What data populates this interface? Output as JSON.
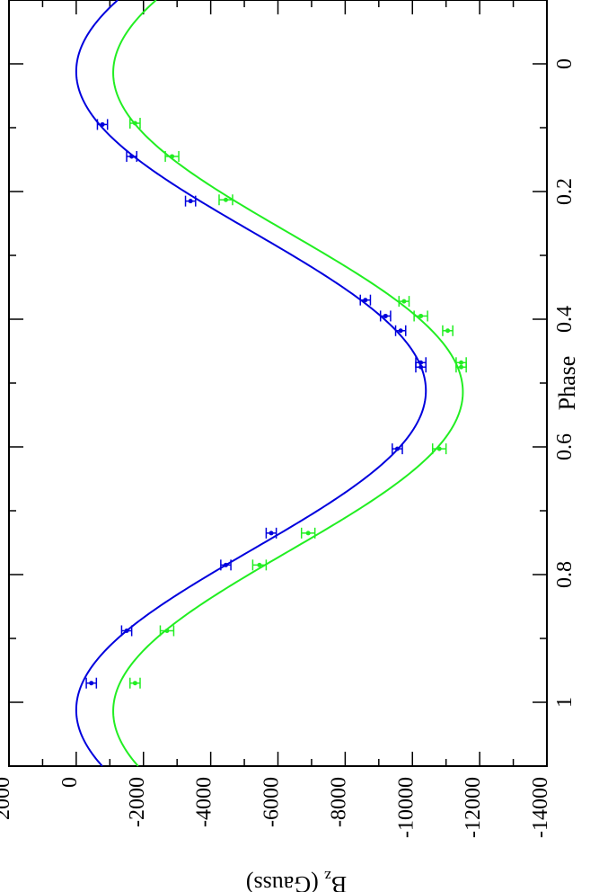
{
  "chart_data": {
    "type": "scatter",
    "orientation": "rotated-90-clockwise",
    "xlabel": "Phase",
    "ylabel_main": "B",
    "ylabel_sub": "z",
    "ylabel_rest": " (Gauss)",
    "xlim": [
      -0.1,
      1.1
    ],
    "ylim": [
      -14000,
      2000
    ],
    "x_ticks": [
      0,
      0.2,
      0.4,
      0.6,
      0.8,
      1
    ],
    "x_tick_labels": [
      "0",
      "0.2",
      "0.4",
      "0.6",
      "0.8",
      "1"
    ],
    "y_ticks": [
      2000,
      0,
      -2000,
      -4000,
      -6000,
      -8000,
      -10000,
      -12000,
      -14000
    ],
    "y_tick_labels": [
      "2000",
      "0",
      "-2000",
      "-4000",
      "-6000",
      "-8000",
      "-10000",
      "-12000",
      "-14000"
    ],
    "grid": false,
    "series": [
      {
        "color": "#0000dd",
        "fit": {
          "mean": -5200,
          "amplitude": 5200,
          "phase_of_max": 0.012
        },
        "points": [
          {
            "x": 0.095,
            "y": -780,
            "err": 150
          },
          {
            "x": 0.145,
            "y": -1650,
            "err": 150
          },
          {
            "x": 0.215,
            "y": -3400,
            "err": 150
          },
          {
            "x": 0.37,
            "y": -8600,
            "err": 150
          },
          {
            "x": 0.395,
            "y": -9200,
            "err": 150
          },
          {
            "x": 0.418,
            "y": -9650,
            "err": 150
          },
          {
            "x": 0.468,
            "y": -10250,
            "err": 150
          },
          {
            "x": 0.475,
            "y": -10250,
            "err": 150
          },
          {
            "x": 0.603,
            "y": -9550,
            "err": 150
          },
          {
            "x": 0.735,
            "y": -5800,
            "err": 150
          },
          {
            "x": 0.785,
            "y": -4450,
            "err": 150
          },
          {
            "x": 0.888,
            "y": -1500,
            "err": 150
          },
          {
            "x": 0.97,
            "y": -450,
            "err": 150
          }
        ]
      },
      {
        "color": "#22ee22",
        "fit": {
          "mean": -6300,
          "amplitude": 5200,
          "phase_of_max": 0.014
        },
        "points": [
          {
            "x": 0.093,
            "y": -1750,
            "err": 150
          },
          {
            "x": 0.145,
            "y": -2850,
            "err": 200
          },
          {
            "x": 0.213,
            "y": -4450,
            "err": 200
          },
          {
            "x": 0.372,
            "y": -9750,
            "err": 150
          },
          {
            "x": 0.395,
            "y": -10250,
            "err": 200
          },
          {
            "x": 0.418,
            "y": -11050,
            "err": 150
          },
          {
            "x": 0.468,
            "y": -11450,
            "err": 150
          },
          {
            "x": 0.475,
            "y": -11450,
            "err": 150
          },
          {
            "x": 0.603,
            "y": -10800,
            "err": 200
          },
          {
            "x": 0.735,
            "y": -6900,
            "err": 200
          },
          {
            "x": 0.785,
            "y": -5450,
            "err": 200
          },
          {
            "x": 0.888,
            "y": -2700,
            "err": 200
          },
          {
            "x": 0.97,
            "y": -1750,
            "err": 150
          }
        ]
      }
    ]
  }
}
